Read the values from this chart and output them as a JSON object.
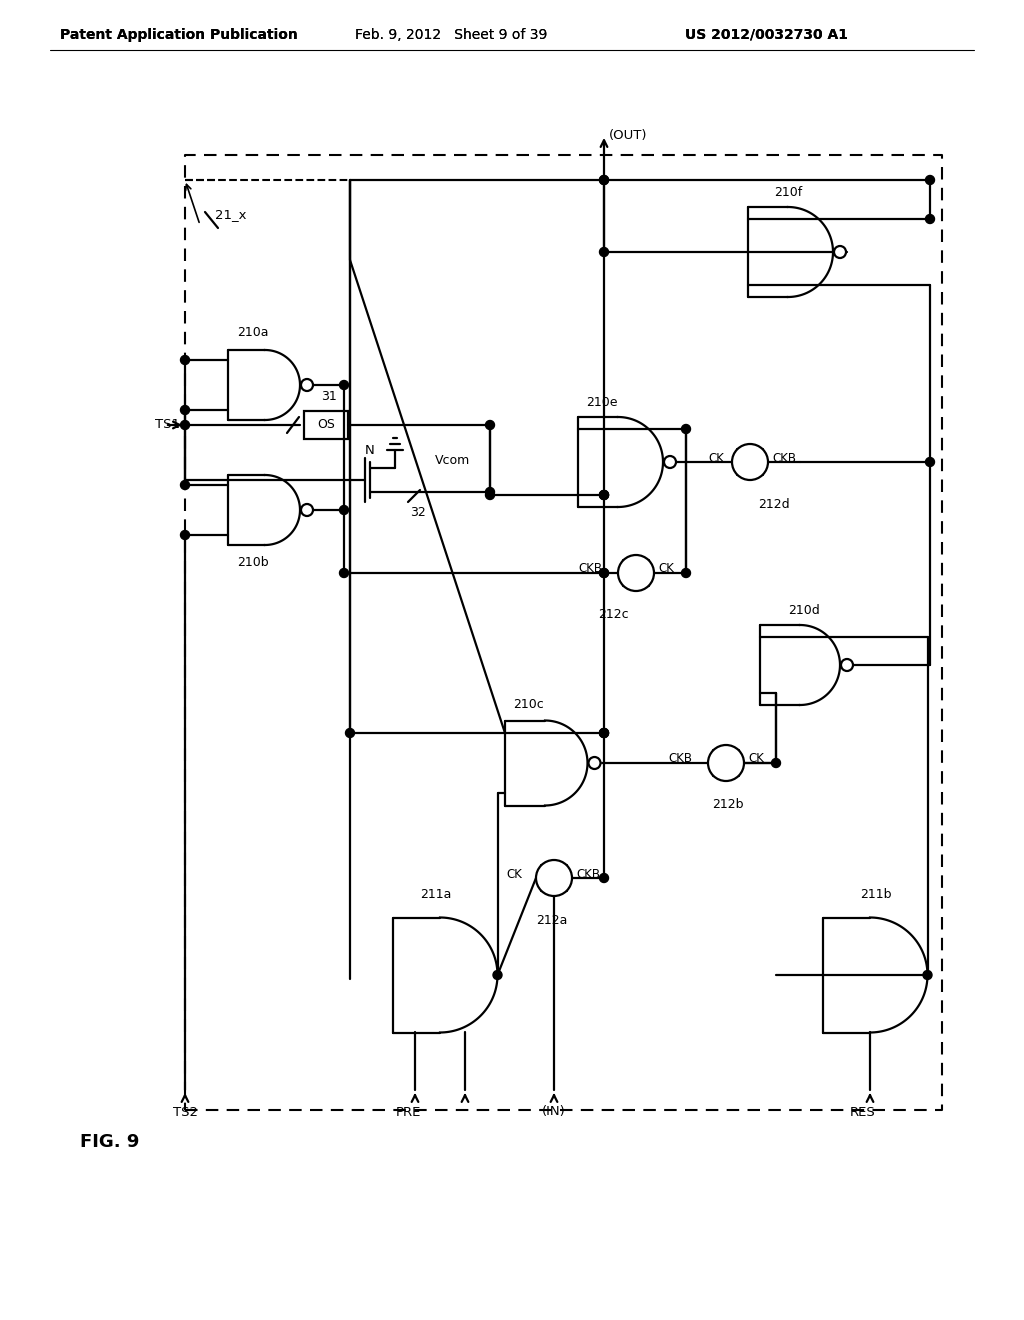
{
  "bg_color": "#ffffff",
  "header_left": "Patent Application Publication",
  "header_mid": "Feb. 9, 2012   Sheet 9 of 39",
  "header_right": "US 2012/0032730 A1"
}
